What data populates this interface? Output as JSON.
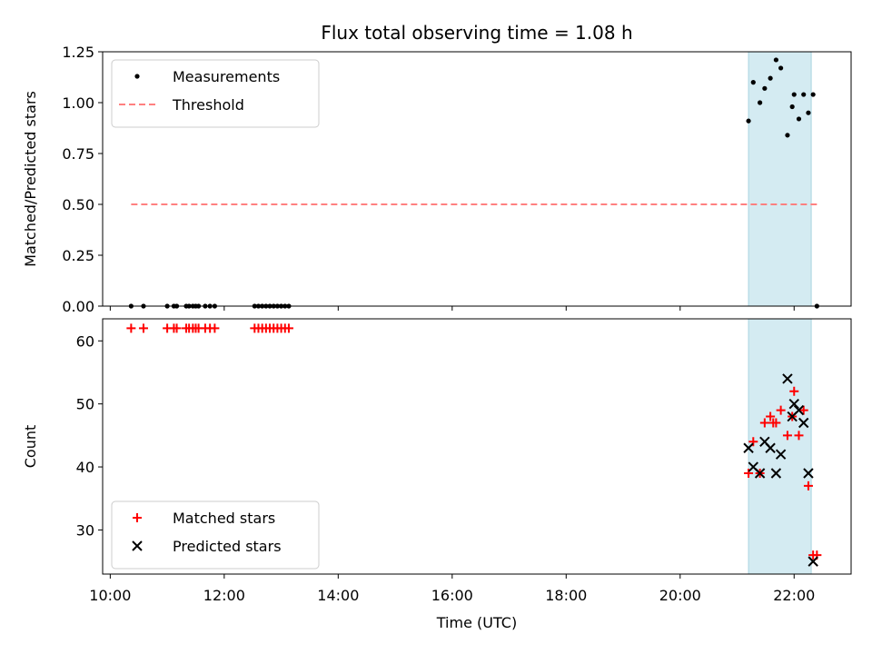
{
  "chart_data": [
    {
      "type": "scatter",
      "title": "Flux total observing time = 1.08 h",
      "xlabel": "",
      "ylabel": "Matched/Predicted stars",
      "ylim": [
        0,
        1.25
      ],
      "yticks": [
        "0.00",
        "0.25",
        "0.50",
        "0.75",
        "1.00",
        "1.25"
      ],
      "xlim": [
        "09:52",
        "23:00"
      ],
      "shaded_interval": [
        "21:12",
        "22:18"
      ],
      "shade_color": "#d4ebf2",
      "legend": {
        "placement": "top-left",
        "entries": [
          "Measurements",
          "Threshold"
        ]
      },
      "series": [
        {
          "name": "Measurements",
          "color": "#000000",
          "x": [
            "10:22",
            "10:35",
            "11:00",
            "11:07",
            "11:10",
            "11:20",
            "11:23",
            "11:27",
            "11:30",
            "11:33",
            "11:40",
            "11:45",
            "11:50",
            "12:32",
            "12:36",
            "12:40",
            "12:44",
            "12:48",
            "12:52",
            "12:56",
            "13:00",
            "13:04",
            "13:08",
            "21:12",
            "21:17",
            "21:24",
            "21:29",
            "21:35",
            "21:41",
            "21:46",
            "21:53",
            "21:58",
            "22:00",
            "22:05",
            "22:10",
            "22:15",
            "22:20",
            "22:24"
          ],
          "y": [
            0,
            0,
            0,
            0,
            0,
            0,
            0,
            0,
            0,
            0,
            0,
            0,
            0,
            0,
            0,
            0,
            0,
            0,
            0,
            0,
            0,
            0,
            0,
            0.91,
            1.1,
            1.0,
            1.07,
            1.12,
            1.21,
            1.17,
            0.84,
            0.98,
            1.04,
            0.92,
            1.04,
            0.95,
            1.04,
            0.0
          ]
        },
        {
          "name": "Threshold",
          "color": "#ff8080",
          "x": [
            "10:22",
            "22:24"
          ],
          "y": [
            0.5,
            0.5
          ]
        }
      ]
    },
    {
      "type": "scatter",
      "title": "",
      "xlabel": "Time (UTC)",
      "ylabel": "Count",
      "ylim": [
        23,
        63.5
      ],
      "yticks": [
        "30",
        "40",
        "50",
        "60"
      ],
      "xticks": [
        "10:00",
        "12:00",
        "14:00",
        "16:00",
        "18:00",
        "20:00",
        "22:00"
      ],
      "xlim": [
        "09:52",
        "23:00"
      ],
      "shaded_interval": [
        "21:12",
        "22:18"
      ],
      "shade_color": "#d4ebf2",
      "legend": {
        "placement": "bottom-left",
        "entries": [
          "Matched stars",
          "Predicted stars"
        ]
      },
      "series": [
        {
          "name": "Matched stars",
          "marker": "plus",
          "color": "#ff0000",
          "x": [
            "10:22",
            "10:35",
            "11:00",
            "11:07",
            "11:10",
            "11:20",
            "11:23",
            "11:27",
            "11:30",
            "11:33",
            "11:40",
            "11:45",
            "11:50",
            "12:32",
            "12:36",
            "12:40",
            "12:44",
            "12:48",
            "12:52",
            "12:56",
            "13:00",
            "13:04",
            "13:08",
            "21:12",
            "21:17",
            "21:24",
            "21:29",
            "21:35",
            "21:38",
            "21:41",
            "21:46",
            "21:53",
            "21:58",
            "22:00",
            "22:05",
            "22:10",
            "22:15",
            "22:20",
            "22:24"
          ],
          "y": [
            62,
            62,
            62,
            62,
            62,
            62,
            62,
            62,
            62,
            62,
            62,
            62,
            62,
            62,
            62,
            62,
            62,
            62,
            62,
            62,
            62,
            62,
            62,
            39,
            44,
            39,
            47,
            48,
            47,
            47,
            49,
            45,
            48,
            52,
            45,
            49,
            37,
            26,
            26
          ]
        },
        {
          "name": "Predicted stars",
          "marker": "x",
          "color": "#000000",
          "x": [
            "21:12",
            "21:17",
            "21:24",
            "21:29",
            "21:35",
            "21:41",
            "21:46",
            "21:53",
            "21:58",
            "22:00",
            "22:05",
            "22:10",
            "22:15",
            "22:20"
          ],
          "y": [
            43,
            40,
            39,
            44,
            43,
            39,
            42,
            54,
            48,
            50,
            49,
            47,
            39,
            25
          ]
        }
      ]
    }
  ]
}
